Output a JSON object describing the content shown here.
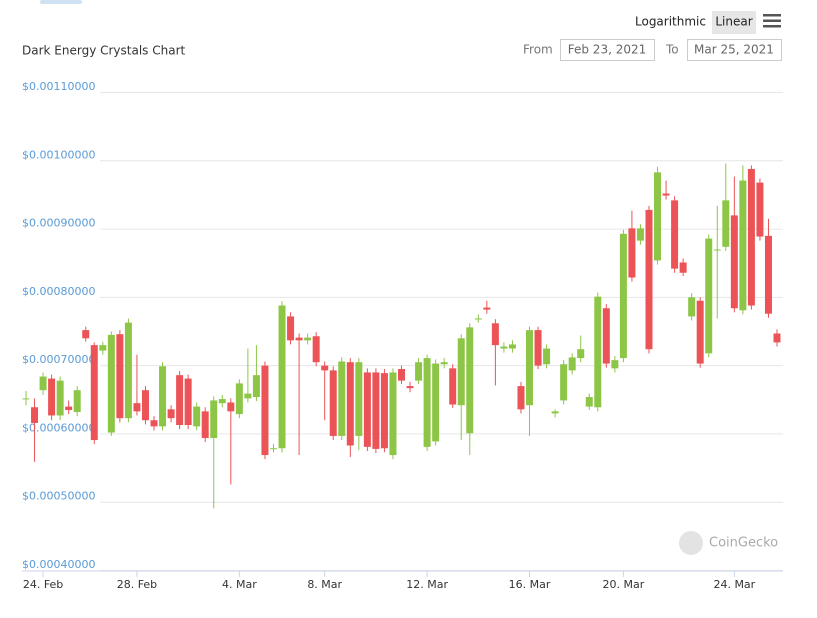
{
  "chart_data": {
    "type": "candlestick",
    "title": "Dark Energy Crystals Chart",
    "up_color": "#8dc647",
    "down_color": "#ec5356",
    "grid": true,
    "ylim": [
      0.0004,
      0.0011
    ],
    "yticks": [
      {
        "value": 0.0004,
        "label": "$0.00040000"
      },
      {
        "value": 0.0005,
        "label": "$0.00050000"
      },
      {
        "value": 0.0006,
        "label": "$0.00060000"
      },
      {
        "value": 0.0007,
        "label": "$0.00070000"
      },
      {
        "value": 0.0008,
        "label": "$0.00080000"
      },
      {
        "value": 0.0009,
        "label": "$0.00090000"
      },
      {
        "value": 0.001,
        "label": "$0.00100000"
      },
      {
        "value": 0.0011,
        "label": "$0.00110000"
      }
    ],
    "categories": [
      null,
      null,
      "24. Feb",
      null,
      null,
      null,
      null,
      null,
      null,
      null,
      null,
      null,
      null,
      "28. Feb",
      null,
      null,
      null,
      null,
      null,
      null,
      null,
      null,
      null,
      null,
      null,
      "4. Mar",
      null,
      null,
      null,
      null,
      null,
      null,
      null,
      null,
      null,
      "8. Mar",
      null,
      null,
      null,
      null,
      null,
      null,
      null,
      null,
      null,
      null,
      null,
      "12. Mar",
      null,
      null,
      null,
      null,
      null,
      null,
      null,
      null,
      null,
      null,
      null,
      "16. Mar",
      null,
      null,
      null,
      null,
      null,
      null,
      null,
      null,
      null,
      null,
      "20. Mar",
      null,
      null,
      null,
      null,
      null,
      null,
      null,
      null,
      null,
      null,
      null,
      null,
      "24. Mar",
      null,
      null,
      null,
      null,
      null
    ],
    "open": [
      0.000644,
      0.000631,
      0.000656,
      0.000673,
      0.000619,
      0.000632,
      0.000624,
      0.000744,
      0.000722,
      0.000714,
      0.000594,
      0.000738,
      0.000615,
      0.000637,
      0.000656,
      0.000612,
      0.000603,
      0.000628,
      0.000678,
      0.000673,
      0.000603,
      0.000625,
      0.000586,
      0.000637,
      0.000638,
      0.000621,
      0.000644,
      0.000646,
      0.000692,
      0.000571,
      0.000571,
      0.000764,
      0.000733,
      0.000729,
      0.000735,
      0.000692,
      0.000685,
      0.000589,
      0.000697,
      0.000589,
      0.000682,
      0.000682,
      0.000681,
      0.000561,
      0.000687,
      0.000662,
      0.00067,
      0.000573,
      0.000581,
      0.000694,
      0.000688,
      0.000634,
      0.000593,
      0.000761,
      0.000777,
      0.000754,
      0.000717,
      0.000717,
      0.000662,
      0.000634,
      0.000744,
      0.000694,
      0.000622,
      0.000641,
      0.000685,
      0.000703,
      0.000632,
      0.000631,
      0.000776,
      0.000688,
      0.000703,
      0.000893,
      0.000875,
      0.00092,
      0.000846,
      0.000944,
      0.000934,
      0.000843,
      0.000764,
      0.000787,
      0.00071,
      0.000862,
      0.000866,
      0.000912,
      0.000773,
      0.00098,
      0.00096,
      0.000882,
      0.000739
    ],
    "high": [
      0.000655,
      0.000644,
      0.000682,
      0.000679,
      0.000676,
      0.000641,
      0.000662,
      0.000749,
      0.000726,
      0.000727,
      0.000742,
      0.000744,
      0.000761,
      0.000708,
      0.000662,
      0.000618,
      0.000697,
      0.000634,
      0.000684,
      0.000679,
      0.000638,
      0.000631,
      0.000647,
      0.000649,
      0.000644,
      0.000672,
      0.000717,
      0.000722,
      0.000698,
      0.000577,
      0.000786,
      0.00077,
      0.000739,
      0.000739,
      0.000741,
      0.000698,
      0.000691,
      0.000704,
      0.000703,
      0.000703,
      0.000688,
      0.000688,
      0.000687,
      0.000688,
      0.000692,
      0.000668,
      0.000703,
      0.000708,
      0.000701,
      0.000703,
      0.000694,
      0.000738,
      0.000754,
      0.000767,
      0.000787,
      0.00076,
      0.000726,
      0.000729,
      0.000668,
      0.000749,
      0.000749,
      0.000723,
      0.000628,
      0.0007,
      0.00071,
      0.000736,
      0.000651,
      0.000799,
      0.000782,
      0.000706,
      0.000891,
      0.000919,
      0.000899,
      0.000926,
      0.000983,
      0.000963,
      0.00094,
      0.000849,
      0.000798,
      0.000792,
      0.000884,
      0.000926,
      0.000988,
      0.000969,
      0.000985,
      0.000985,
      0.000966,
      0.000907,
      0.000745
    ],
    "low": [
      0.000634,
      0.000551,
      0.000649,
      0.000612,
      0.000612,
      0.000621,
      0.000618,
      0.000727,
      0.000577,
      0.000708,
      0.000589,
      0.000609,
      0.000609,
      0.000619,
      0.000606,
      0.000597,
      0.000597,
      0.000609,
      0.000599,
      0.000599,
      0.000597,
      0.00058,
      0.000483,
      0.000631,
      0.000518,
      0.000615,
      0.000638,
      0.00064,
      0.000555,
      0.000565,
      0.000565,
      0.000723,
      0.000561,
      0.000723,
      0.000691,
      0.000612,
      0.000583,
      0.000583,
      0.000558,
      0.000568,
      0.000567,
      0.000564,
      0.000565,
      0.000555,
      0.000665,
      0.000653,
      0.000665,
      0.000567,
      0.000575,
      0.000688,
      0.00063,
      0.000583,
      0.000561,
      0.000755,
      0.000768,
      0.000663,
      0.000711,
      0.000711,
      0.000622,
      0.000589,
      0.000687,
      0.000688,
      0.000616,
      0.000635,
      0.000679,
      0.000697,
      0.000627,
      0.000625,
      0.000689,
      0.000682,
      0.000697,
      0.000815,
      0.000869,
      0.00071,
      0.00084,
      0.000935,
      0.000828,
      0.000823,
      0.000758,
      0.000689,
      0.000704,
      0.000761,
      0.00086,
      0.00077,
      0.000767,
      0.000774,
      0.000875,
      0.000762,
      0.00072
    ],
    "close": [
      0.000644,
      0.000608,
      0.000676,
      0.000619,
      0.00067,
      0.000627,
      0.000656,
      0.000732,
      0.000583,
      0.000722,
      0.000737,
      0.000615,
      0.000755,
      0.000625,
      0.000612,
      0.000603,
      0.000691,
      0.000615,
      0.000605,
      0.000605,
      0.000632,
      0.000586,
      0.000641,
      0.000643,
      0.000625,
      0.000666,
      0.000651,
      0.000678,
      0.000561,
      0.000571,
      0.00078,
      0.000729,
      0.000729,
      0.000733,
      0.000697,
      0.000685,
      0.000589,
      0.000698,
      0.000575,
      0.000697,
      0.000573,
      0.00057,
      0.000571,
      0.000682,
      0.00067,
      0.000659,
      0.000697,
      0.000703,
      0.000695,
      0.000697,
      0.000635,
      0.000732,
      0.000748,
      0.000761,
      0.000774,
      0.000722,
      0.00072,
      0.000723,
      0.000628,
      0.000744,
      0.000692,
      0.000717,
      0.000625,
      0.000694,
      0.000704,
      0.000716,
      0.000646,
      0.000793,
      0.000695,
      0.0007,
      0.000885,
      0.000821,
      0.000893,
      0.000716,
      0.000975,
      0.000941,
      0.000834,
      0.000828,
      0.000792,
      0.000695,
      0.000878,
      0.000862,
      0.000934,
      0.000776,
      0.000963,
      0.00078,
      0.000881,
      0.000768,
      0.000726
    ]
  },
  "controls": {
    "scale_options": [
      "Logarithmic",
      "Linear"
    ],
    "from_label": "From",
    "from_date": "Feb 23, 2021",
    "to_label": "To",
    "to_date": "Mar 25, 2021"
  },
  "watermark": "CoinGecko"
}
